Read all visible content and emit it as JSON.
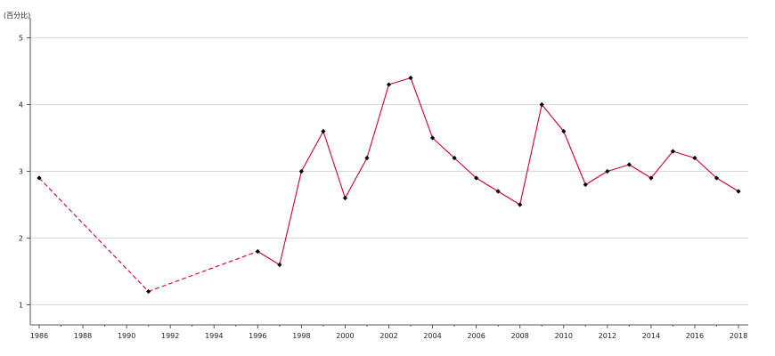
{
  "chart_data": {
    "type": "line",
    "title": "",
    "xlabel": "",
    "ylabel": "(百分比)",
    "x_range": [
      1986,
      2018
    ],
    "ylim": [
      0.7,
      5.3
    ],
    "y_ticks": [
      1,
      2,
      3,
      4,
      5
    ],
    "x_ticks": [
      1986,
      1988,
      1990,
      1992,
      1994,
      1996,
      1998,
      2000,
      2002,
      2004,
      2006,
      2008,
      2010,
      2012,
      2014,
      2016,
      2018
    ],
    "grid": "horizontal",
    "colors": {
      "line": "#cc0033",
      "marker": "#000000",
      "grid": "#d9d9d9",
      "axis": "#555555"
    },
    "series": [
      {
        "values": [
          {
            "x": 1986,
            "y": 2.9
          },
          {
            "x": 1991,
            "y": 1.2
          },
          {
            "x": 1996,
            "y": 1.8
          },
          {
            "x": 1997,
            "y": 1.6
          },
          {
            "x": 1998,
            "y": 3.0
          },
          {
            "x": 1999,
            "y": 3.6
          },
          {
            "x": 2000,
            "y": 2.6
          },
          {
            "x": 2001,
            "y": 3.2
          },
          {
            "x": 2002,
            "y": 4.3
          },
          {
            "x": 2003,
            "y": 4.4
          },
          {
            "x": 2004,
            "y": 3.5
          },
          {
            "x": 2005,
            "y": 3.2
          },
          {
            "x": 2006,
            "y": 2.9
          },
          {
            "x": 2007,
            "y": 2.7
          },
          {
            "x": 2008,
            "y": 2.5
          },
          {
            "x": 2009,
            "y": 4.0
          },
          {
            "x": 2010,
            "y": 3.6
          },
          {
            "x": 2011,
            "y": 2.8
          },
          {
            "x": 2012,
            "y": 3.0
          },
          {
            "x": 2013,
            "y": 3.1
          },
          {
            "x": 2014,
            "y": 2.9
          },
          {
            "x": 2015,
            "y": 3.3
          },
          {
            "x": 2016,
            "y": 3.2
          },
          {
            "x": 2017,
            "y": 2.9
          },
          {
            "x": 2018,
            "y": 2.7
          }
        ]
      }
    ]
  }
}
